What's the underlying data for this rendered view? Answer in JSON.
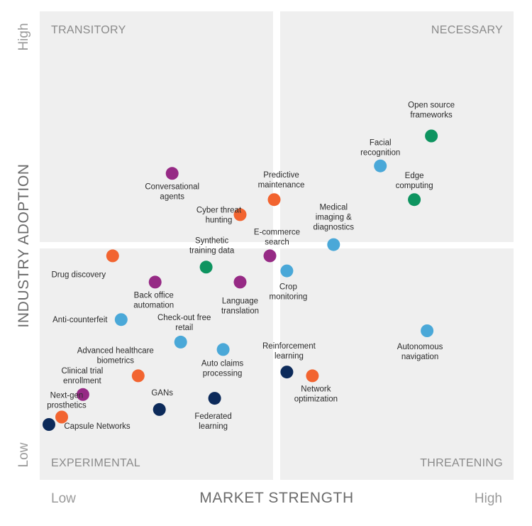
{
  "colors": {
    "quadrant_bg": "#efefef",
    "purple": "#962a85",
    "orange": "#f26430",
    "blue": "#4aa8d8",
    "green": "#0e9460",
    "navy": "#0c2a5a"
  },
  "quadrants": {
    "top_left": "TRANSITORY",
    "top_right": "NECESSARY",
    "bottom_left": "EXPERIMENTAL",
    "bottom_right": "THREATENING"
  },
  "chart_data": {
    "type": "scatter",
    "title": "",
    "xlabel": "MARKET STRENGTH",
    "ylabel": "INDUSTRY ADOPTION",
    "x_ticks": [
      "Low",
      "High"
    ],
    "y_ticks": [
      "Low",
      "High"
    ],
    "xlim": [
      0,
      1
    ],
    "ylim": [
      0,
      1
    ],
    "grid": false,
    "points": [
      {
        "label": "Open source frameworks",
        "x": 0.91,
        "y": 0.84,
        "color": "green"
      },
      {
        "label": "Facial recognition",
        "x": 0.79,
        "y": 0.76,
        "color": "blue"
      },
      {
        "label": "Edge computing",
        "x": 0.87,
        "y": 0.67,
        "color": "green"
      },
      {
        "label": "Conversational agents",
        "x": 0.3,
        "y": 0.74,
        "color": "purple"
      },
      {
        "label": "Predictive maintenance",
        "x": 0.54,
        "y": 0.67,
        "color": "orange"
      },
      {
        "label": "Cyber threat hunting",
        "x": 0.46,
        "y": 0.63,
        "color": "orange"
      },
      {
        "label": "Medical imaging & diagnostics",
        "x": 0.68,
        "y": 0.55,
        "color": "blue"
      },
      {
        "label": "E-commerce search",
        "x": 0.53,
        "y": 0.52,
        "color": "purple"
      },
      {
        "label": "Drug discovery",
        "x": 0.16,
        "y": 0.52,
        "color": "orange"
      },
      {
        "label": "Synthetic training data",
        "x": 0.38,
        "y": 0.49,
        "color": "green"
      },
      {
        "label": "Crop monitoring",
        "x": 0.57,
        "y": 0.48,
        "color": "blue"
      },
      {
        "label": "Back office automation",
        "x": 0.26,
        "y": 0.45,
        "color": "purple"
      },
      {
        "label": "Language translation",
        "x": 0.46,
        "y": 0.45,
        "color": "purple"
      },
      {
        "label": "Anti-counterfeit",
        "x": 0.18,
        "y": 0.35,
        "color": "blue"
      },
      {
        "label": "Autonomous navigation",
        "x": 0.9,
        "y": 0.32,
        "color": "blue"
      },
      {
        "label": "Check-out free retail",
        "x": 0.32,
        "y": 0.29,
        "color": "blue"
      },
      {
        "label": "Auto claims processing",
        "x": 0.42,
        "y": 0.27,
        "color": "blue"
      },
      {
        "label": "Reinforcement learning",
        "x": 0.57,
        "y": 0.21,
        "color": "navy"
      },
      {
        "label": "Network optimization",
        "x": 0.63,
        "y": 0.2,
        "color": "orange"
      },
      {
        "label": "Advanced healthcare biometrics",
        "x": 0.22,
        "y": 0.2,
        "color": "orange"
      },
      {
        "label": "Clinical trial enrollment",
        "x": 0.09,
        "y": 0.15,
        "color": "purple"
      },
      {
        "label": "GANs",
        "x": 0.27,
        "y": 0.11,
        "color": "navy"
      },
      {
        "label": "Federated learning",
        "x": 0.4,
        "y": 0.14,
        "color": "navy"
      },
      {
        "label": "Next-gen prosthetics",
        "x": 0.04,
        "y": 0.09,
        "color": "orange"
      },
      {
        "label": "Capsule Networks",
        "x": 0.01,
        "y": 0.07,
        "color": "navy"
      }
    ],
    "point_label_lines": [
      [
        "Open source",
        "frameworks"
      ],
      [
        "Facial",
        "recognition"
      ],
      [
        "Edge",
        "computing"
      ],
      [
        "Conversational",
        "agents"
      ],
      [
        "Predictive",
        "maintenance"
      ],
      [
        "Cyber threat",
        "hunting"
      ],
      [
        "Medical",
        "imaging &",
        "diagnostics"
      ],
      [
        "E-commerce",
        "search"
      ],
      [
        "Drug discovery"
      ],
      [
        "Synthetic",
        "training data"
      ],
      [
        "Crop",
        "monitoring"
      ],
      [
        "Back office",
        "automation"
      ],
      [
        "Language",
        "translation"
      ],
      [
        "Anti-counterfeit"
      ],
      [
        "Autonomous",
        "navigation"
      ],
      [
        "Check-out free",
        "retail"
      ],
      [
        "Auto claims",
        "processing"
      ],
      [
        "Reinforcement",
        "learning"
      ],
      [
        "Network",
        "optimization"
      ],
      [
        "Advanced healthcare",
        "biometrics"
      ],
      [
        "Clinical trial",
        "enrollment"
      ],
      [
        "GANs"
      ],
      [
        "Federated",
        "learning"
      ],
      [
        "Next-gen",
        "prosthetics"
      ],
      [
        "Capsule Networks"
      ]
    ]
  }
}
